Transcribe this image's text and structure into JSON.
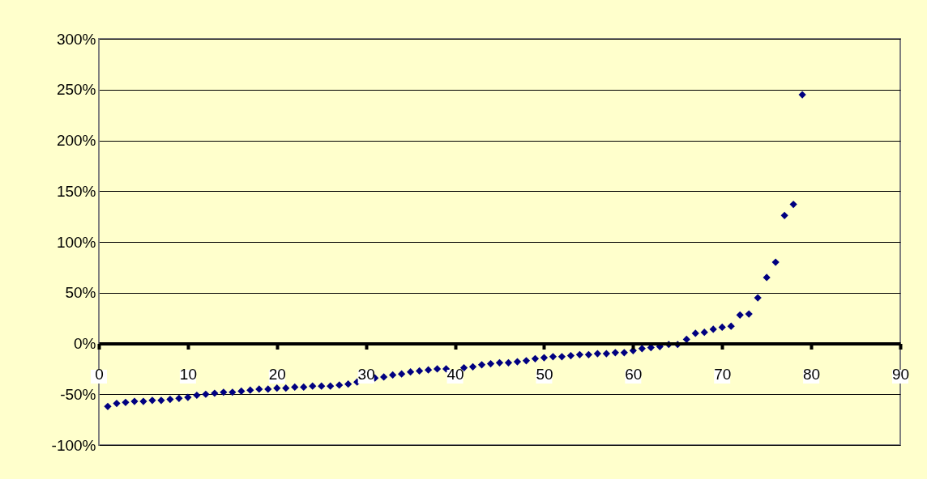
{
  "chart_data": {
    "type": "scatter",
    "marker": "diamond",
    "grid": "y",
    "x": [
      1,
      2,
      3,
      4,
      5,
      6,
      7,
      8,
      9,
      10,
      11,
      12,
      13,
      14,
      15,
      16,
      17,
      18,
      19,
      20,
      21,
      22,
      23,
      24,
      25,
      26,
      27,
      28,
      29,
      30,
      31,
      32,
      33,
      34,
      35,
      36,
      37,
      38,
      39,
      40,
      41,
      42,
      43,
      44,
      45,
      46,
      47,
      48,
      49,
      50,
      51,
      52,
      53,
      54,
      55,
      56,
      57,
      58,
      59,
      60,
      61,
      62,
      63,
      64,
      65,
      66,
      67,
      68,
      69,
      70,
      71,
      72,
      73,
      74,
      75,
      76,
      77,
      78,
      79
    ],
    "series": [
      {
        "color": "#000080",
        "values": [
          -62,
          -59,
          -58,
          -57,
          -57,
          -56,
          -56,
          -55,
          -54,
          -53,
          -51,
          -50,
          -49,
          -48,
          -48,
          -47,
          -46,
          -45,
          -45,
          -44,
          -44,
          -43,
          -43,
          -42,
          -42,
          -42,
          -41,
          -40,
          -38,
          null,
          -34,
          -33,
          -31,
          -30,
          -28,
          -27,
          -26,
          -25,
          -25,
          null,
          -24,
          -23,
          -21,
          -20,
          -19,
          -19,
          -18,
          -17,
          -15,
          -14,
          -13,
          -13,
          -12,
          -11,
          -11,
          -10,
          -10,
          -9,
          -9,
          -7,
          -5,
          -4,
          -3,
          -1,
          -1,
          4,
          10,
          11,
          14,
          16,
          17,
          28,
          29,
          45,
          65,
          80,
          126,
          137,
          245
        ]
      }
    ],
    "xlim": [
      0,
      90
    ],
    "xticks": [
      0,
      10,
      20,
      30,
      40,
      50,
      60,
      70,
      80,
      90
    ],
    "ylim": [
      -100,
      300
    ],
    "yticks": [
      {
        "value": -100,
        "label": "-100%"
      },
      {
        "value": -50,
        "label": "-50%"
      },
      {
        "value": 0,
        "label": "0%"
      },
      {
        "value": 50,
        "label": "50%"
      },
      {
        "value": 100,
        "label": "100%"
      },
      {
        "value": 150,
        "label": "150%"
      },
      {
        "value": 200,
        "label": "200%"
      },
      {
        "value": 250,
        "label": "250%"
      },
      {
        "value": 300,
        "label": "300%"
      }
    ]
  }
}
